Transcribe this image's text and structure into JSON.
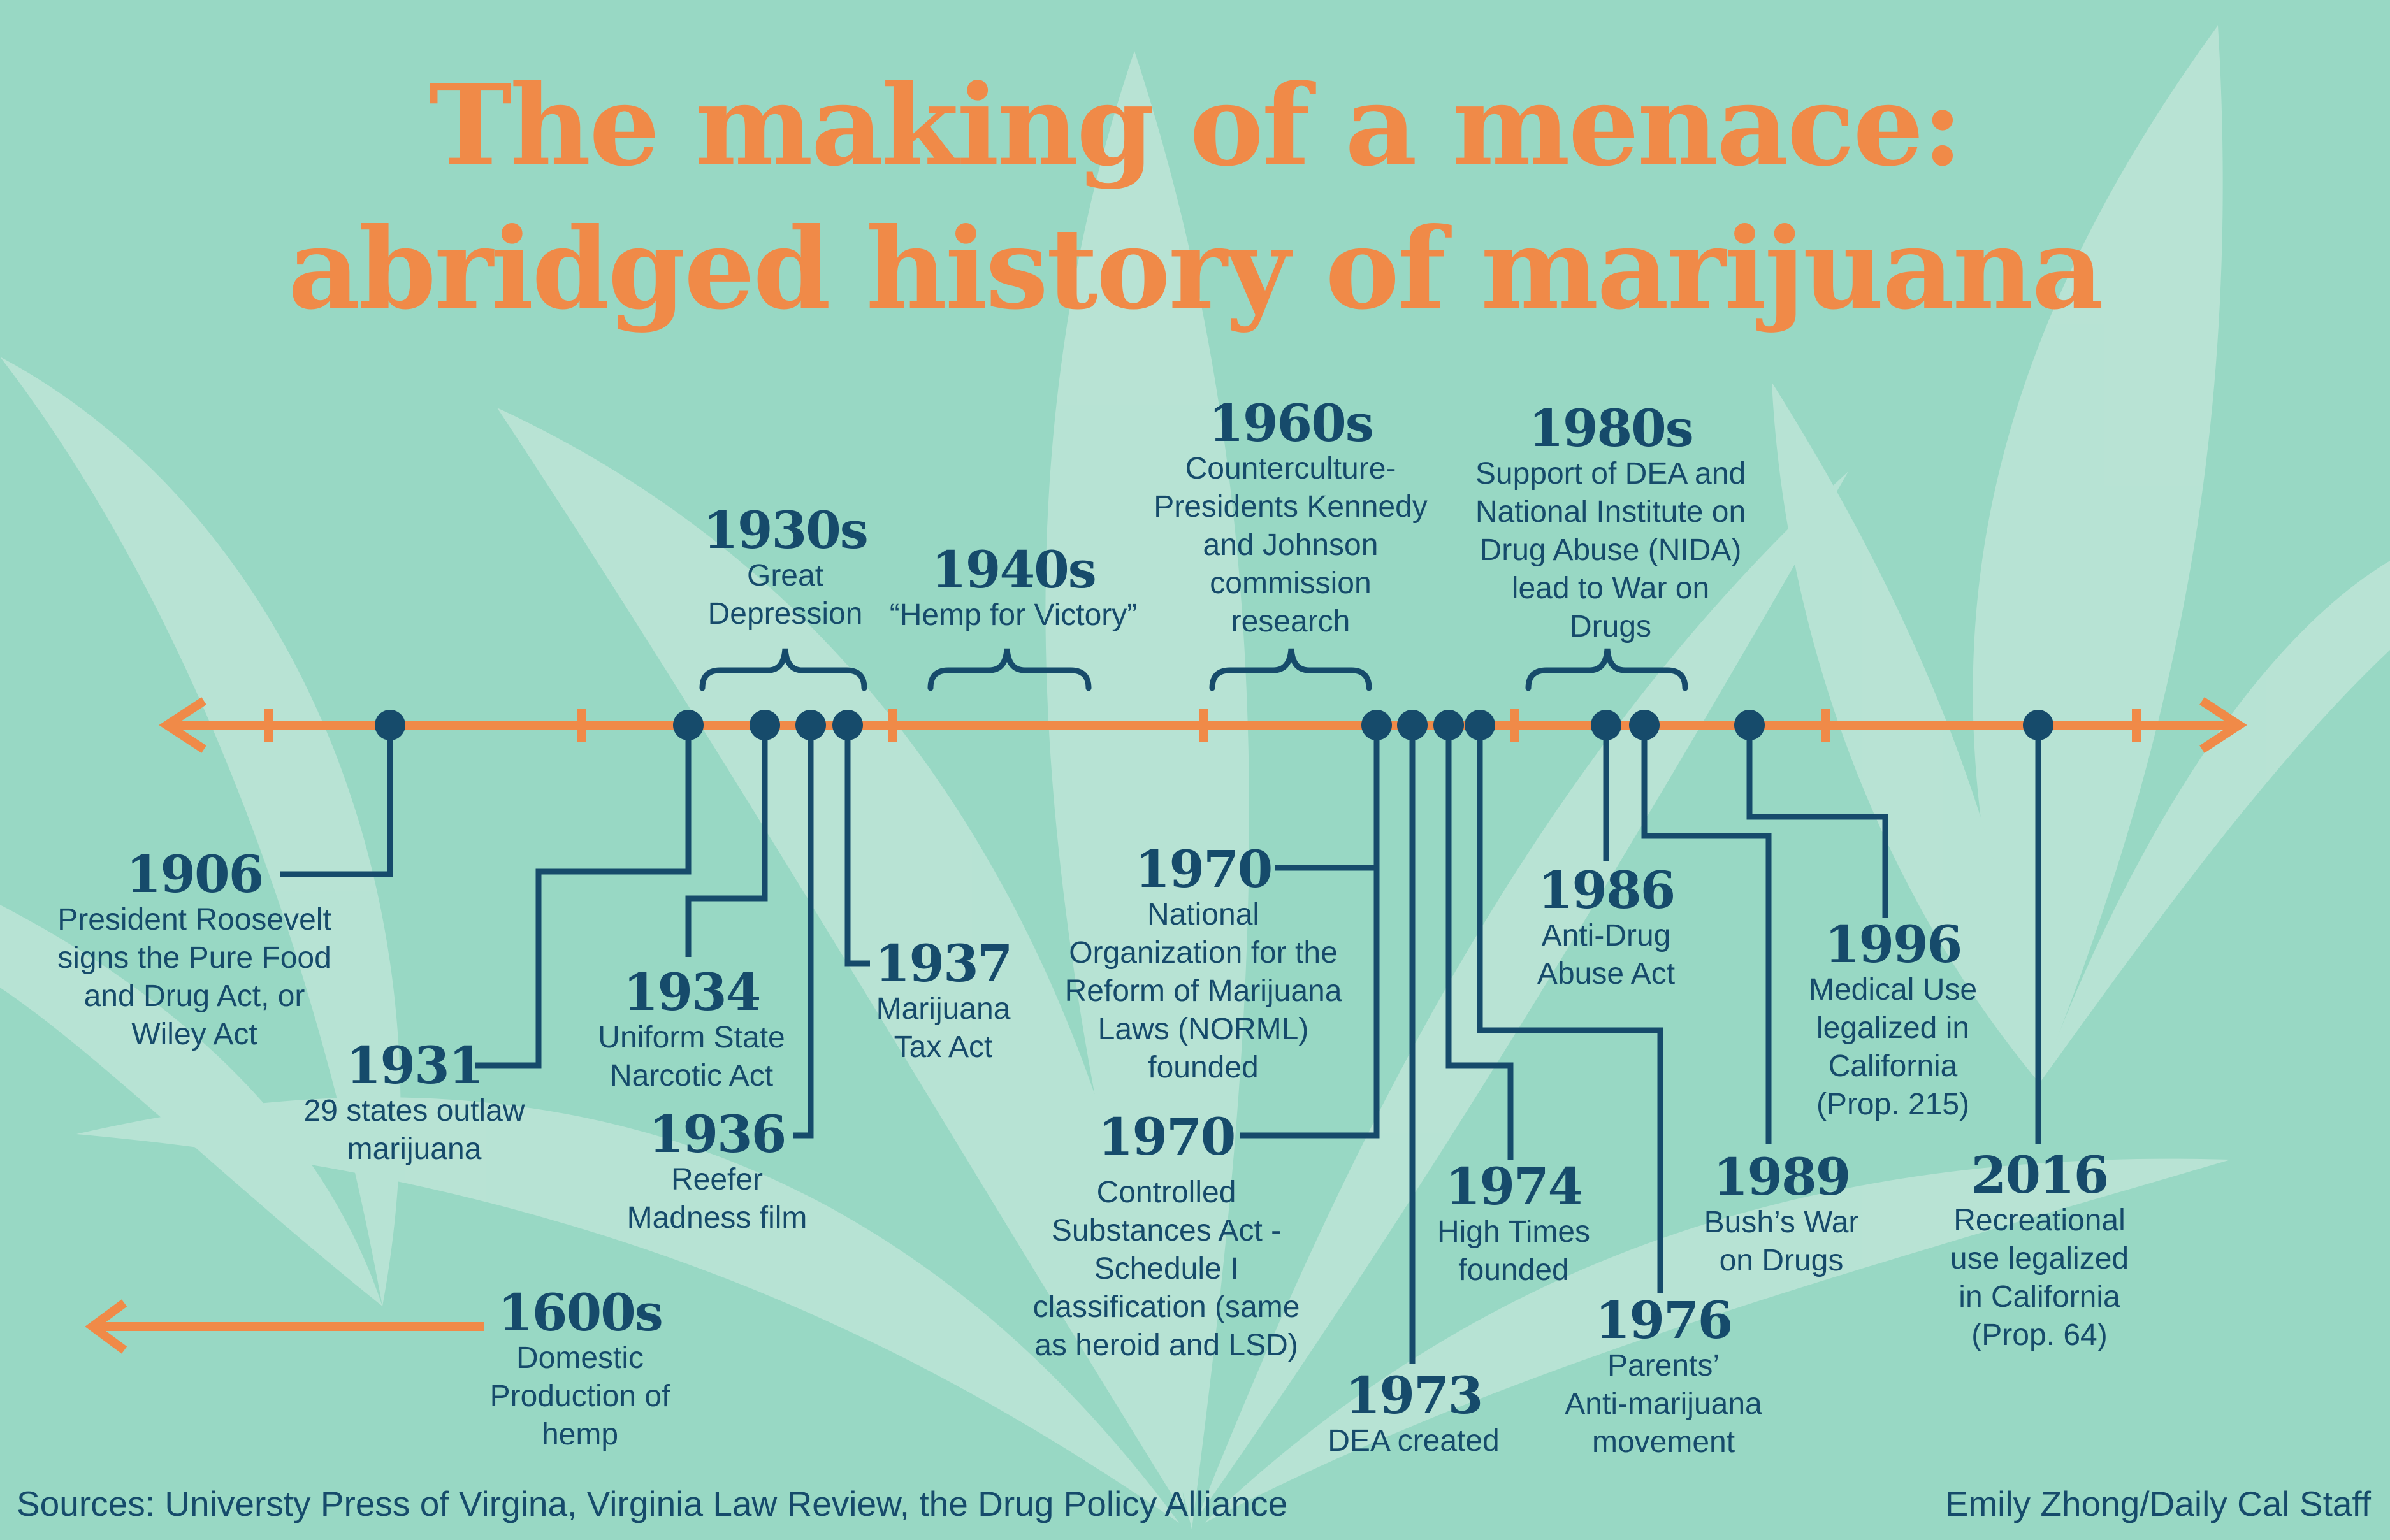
{
  "title": {
    "line1": "The making of a menace:",
    "line2": "abridged history of marijuana"
  },
  "events": [
    {
      "year": "1600s",
      "desc": "Domestic\nProduction of\nhemp"
    },
    {
      "year": "1906",
      "desc": "President Roosevelt\nsigns the Pure Food\nand Drug Act, or\nWiley Act"
    },
    {
      "year": "1930s",
      "desc": "Great\nDepression"
    },
    {
      "year": "1931",
      "desc": "29 states outlaw\nmarijuana"
    },
    {
      "year": "1934",
      "desc": "Uniform State\nNarcotic Act"
    },
    {
      "year": "1936",
      "desc": "Reefer\nMadness film"
    },
    {
      "year": "1937",
      "desc": "Marijuana\nTax Act"
    },
    {
      "year": "1940s",
      "desc": "“Hemp for Victory”"
    },
    {
      "year": "1960s",
      "desc": "Counterculture-\nPresidents Kennedy\nand Johnson\ncommission\nresearch"
    },
    {
      "year": "1970",
      "desc": "National\nOrganization for the\nReform of Marijuana\nLaws (NORML)\nfounded"
    },
    {
      "year": "1970",
      "desc": "Controlled\nSubstances Act -\nSchedule I\nclassification (same\nas heroid and LSD)"
    },
    {
      "year": "1973",
      "desc": "DEA created"
    },
    {
      "year": "1974",
      "desc": "High Times\nfounded"
    },
    {
      "year": "1976",
      "desc": "Parents’\nAnti-marijuana\nmovement"
    },
    {
      "year": "1980s",
      "desc": "Support of DEA and\nNational Institute on\nDrug Abuse (NIDA)\nlead to War on\nDrugs"
    },
    {
      "year": "1986",
      "desc": "Anti-Drug\nAbuse Act"
    },
    {
      "year": "1989",
      "desc": "Bush’s War\non Drugs"
    },
    {
      "year": "1996",
      "desc": "Medical Use\nlegalized in\nCalifornia\n(Prop. 215)"
    },
    {
      "year": "2016",
      "desc": "Recreational\nuse legalized\nin California\n(Prop. 64)"
    }
  ],
  "footer": {
    "sources": "Sources: Universty Press of Virgina, Virginia Law Review, the Drug Policy Alliance",
    "credit": "Emily Zhong/Daily Cal Staff"
  },
  "colors": {
    "background": "#98d8c4",
    "leaf": "#bde5d7",
    "title": "#f08a48",
    "timeline": "#f08a48",
    "ink": "#164b6b"
  }
}
